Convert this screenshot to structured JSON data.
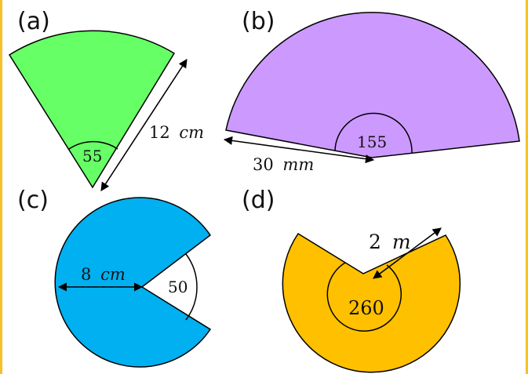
{
  "colors": {
    "border": "#F6C02A",
    "sector_a": "#66FF66",
    "sector_b": "#CC99FF",
    "sector_c": "#00B0F0",
    "sector_d": "#FFC000",
    "stroke": "#000000"
  },
  "shapes": {
    "a": {
      "label": "(a)",
      "angle": "55",
      "length_value": "12",
      "length_unit": "cm"
    },
    "b": {
      "label": "(b)",
      "angle": "155",
      "length_value": "30",
      "length_unit": "mm"
    },
    "c": {
      "label": "(c)",
      "angle": "50",
      "length_value": "8",
      "length_unit": "cm"
    },
    "d": {
      "label": "(d)",
      "angle": "260",
      "length_value": "2",
      "length_unit": "m"
    }
  }
}
